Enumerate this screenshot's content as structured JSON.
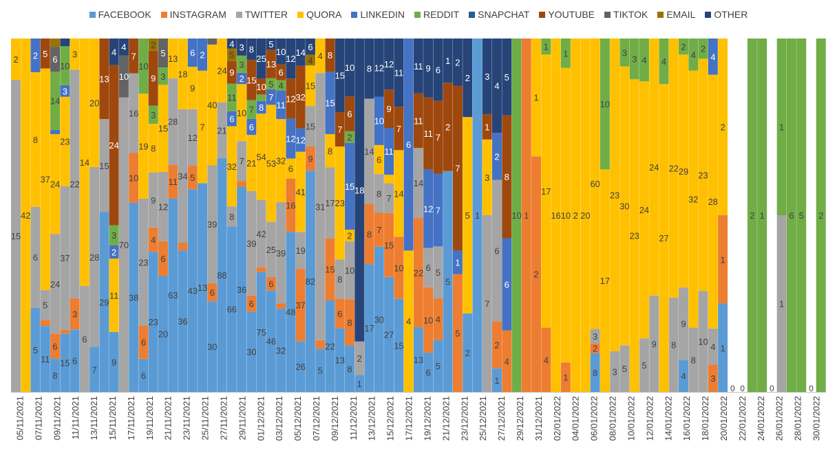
{
  "chart_data": {
    "type": "bar",
    "stacked": "percent",
    "title": "",
    "xlabel": "",
    "ylabel": "",
    "legend_position": "top",
    "grid": false,
    "series": [
      {
        "name": "FACEBOOK",
        "color": "#5B9BD5"
      },
      {
        "name": "INSTAGRAM",
        "color": "#ED7D31"
      },
      {
        "name": "TWITTER",
        "color": "#A5A5A5"
      },
      {
        "name": "QUORA",
        "color": "#FFC000"
      },
      {
        "name": "LINKEDIN",
        "color": "#4472C4"
      },
      {
        "name": "REDDIT",
        "color": "#70AD47"
      },
      {
        "name": "SNAPCHAT",
        "color": "#255E91"
      },
      {
        "name": "YOUTUBE",
        "color": "#9E480E"
      },
      {
        "name": "TIKTOK",
        "color": "#636363"
      },
      {
        "name": "EMAIL",
        "color": "#997300"
      },
      {
        "name": "OTHER",
        "color": "#264478"
      }
    ],
    "x_tick_labels": [
      "05/11/2021",
      "07/11/2021",
      "09/11/2021",
      "11/11/2021",
      "13/11/2021",
      "15/11/2021",
      "17/11/2021",
      "19/11/2021",
      "21/11/2021",
      "23/11/2021",
      "25/11/2021",
      "27/11/2021",
      "29/11/2021",
      "01/12/2021",
      "03/12/2021",
      "05/12/2021",
      "07/12/2021",
      "09/12/2021",
      "11/12/2021",
      "13/12/2021",
      "15/12/2021",
      "17/12/2021",
      "19/12/2021",
      "21/12/2021",
      "23/12/2021",
      "25/12/2021",
      "27/12/2021",
      "29/12/2021",
      "31/12/2021",
      "02/01/2022",
      "04/01/2022",
      "06/01/2022",
      "08/01/2022",
      "10/01/2022",
      "12/01/2022",
      "14/01/2022",
      "16/01/2022",
      "18/01/2022",
      "20/01/2022",
      "22/01/2022",
      "24/01/2022",
      "26/01/2022",
      "28/01/2022",
      "30/01/2022"
    ],
    "columns": [
      [
        0,
        0,
        15,
        2,
        0,
        0,
        0,
        0,
        0,
        0,
        0
      ],
      [
        0,
        0,
        0,
        42,
        0,
        0,
        0,
        0,
        0,
        0,
        0
      ],
      [
        5,
        0,
        6,
        8,
        2,
        0,
        0,
        0,
        0,
        0,
        0
      ],
      [
        11,
        1,
        5,
        37,
        0,
        0,
        0,
        5,
        0,
        0,
        0
      ],
      [
        8,
        6,
        24,
        24,
        1,
        14,
        0,
        0,
        6,
        2,
        0
      ],
      [
        15,
        1,
        37,
        23,
        3,
        10,
        0,
        0,
        0,
        0,
        2
      ],
      [
        6,
        3,
        22,
        3,
        0,
        0,
        0,
        0,
        0,
        0,
        0
      ],
      [
        0,
        0,
        6,
        14,
        0,
        0,
        0,
        0,
        0,
        0,
        0
      ],
      [
        7,
        0,
        28,
        20,
        0,
        0,
        0,
        0,
        0,
        0,
        0
      ],
      [
        29,
        0,
        15,
        0,
        0,
        0,
        0,
        13,
        0,
        0,
        0
      ],
      [
        9,
        0,
        0,
        11,
        2,
        3,
        0,
        24,
        0,
        0,
        4
      ],
      [
        0,
        0,
        70,
        0,
        0,
        0,
        0,
        0,
        10,
        0,
        4
      ],
      [
        38,
        10,
        16,
        0,
        0,
        0,
        0,
        7,
        0,
        0,
        0
      ],
      [
        6,
        6,
        23,
        19,
        0,
        10,
        0,
        0,
        0,
        0,
        0
      ],
      [
        23,
        4,
        9,
        8,
        0,
        3,
        0,
        9,
        0,
        2,
        0
      ],
      [
        20,
        6,
        12,
        15,
        0,
        3,
        0,
        0,
        5,
        0,
        0
      ],
      [
        63,
        11,
        28,
        13,
        0,
        0,
        0,
        0,
        0,
        0,
        0
      ],
      [
        36,
        2,
        34,
        18,
        0,
        0,
        0,
        0,
        0,
        0,
        0
      ],
      [
        43,
        5,
        12,
        9,
        6,
        0,
        0,
        0,
        0,
        0,
        0
      ],
      [
        13,
        0,
        0,
        7,
        2,
        0,
        0,
        0,
        0,
        0,
        0
      ],
      [
        30,
        6,
        39,
        40,
        0,
        0,
        0,
        0,
        2,
        0,
        0
      ],
      [
        88,
        0,
        21,
        24,
        0,
        0,
        0,
        0,
        0,
        0,
        0
      ],
      [
        66,
        0,
        8,
        32,
        6,
        11,
        0,
        9,
        0,
        5,
        4
      ],
      [
        36,
        1,
        7,
        10,
        2,
        3,
        0,
        0,
        0,
        0,
        3
      ],
      [
        30,
        6,
        39,
        21,
        6,
        7,
        0,
        15,
        0,
        0,
        8
      ],
      [
        75,
        3,
        42,
        54,
        8,
        4,
        0,
        10,
        0,
        0,
        25
      ],
      [
        46,
        6,
        25,
        53,
        7,
        5,
        0,
        13,
        0,
        0,
        5
      ],
      [
        32,
        2,
        39,
        32,
        11,
        4,
        0,
        6,
        0,
        0,
        10
      ],
      [
        48,
        16,
        0,
        6,
        12,
        0,
        0,
        12,
        0,
        0,
        12
      ],
      [
        26,
        37,
        19,
        41,
        12,
        0,
        0,
        32,
        0,
        0,
        14
      ],
      [
        82,
        9,
        15,
        15,
        0,
        0,
        0,
        0,
        0,
        4,
        6
      ],
      [
        5,
        1,
        31,
        4,
        0,
        0,
        0,
        0,
        0,
        0,
        0
      ],
      [
        22,
        15,
        17,
        8,
        15,
        0,
        0,
        8,
        0,
        0,
        0
      ],
      [
        13,
        6,
        8,
        23,
        0,
        0,
        0,
        7,
        0,
        0,
        15
      ],
      [
        8,
        8,
        10,
        2,
        15,
        2,
        0,
        6,
        0,
        0,
        10
      ],
      [
        1,
        0,
        2,
        0,
        0,
        0,
        0,
        0,
        0,
        0,
        18
      ],
      [
        17,
        8,
        14,
        0,
        0,
        0,
        0,
        0,
        0,
        0,
        8
      ],
      [
        30,
        7,
        8,
        6,
        10,
        0,
        0,
        0,
        0,
        0,
        12
      ],
      [
        27,
        15,
        7,
        2,
        11,
        0,
        0,
        9,
        0,
        0,
        12
      ],
      [
        15,
        10,
        0,
        14,
        0,
        0,
        0,
        7,
        0,
        0,
        11
      ],
      [
        0,
        0,
        0,
        4,
        6,
        0,
        0,
        0,
        0,
        0,
        0
      ],
      [
        13,
        22,
        14,
        0,
        0,
        0,
        0,
        11,
        0,
        0,
        11
      ],
      [
        6,
        10,
        6,
        0,
        12,
        0,
        0,
        11,
        0,
        0,
        9
      ],
      [
        5,
        4,
        5,
        0,
        7,
        0,
        0,
        7,
        0,
        0,
        6
      ],
      [
        5,
        0,
        0,
        0,
        0,
        0,
        0,
        2,
        0,
        0,
        1
      ],
      [
        0,
        5,
        0,
        0,
        1,
        0,
        0,
        7,
        0,
        0,
        2
      ],
      [
        2,
        0,
        0,
        5,
        0,
        0,
        0,
        0,
        0,
        0,
        2
      ],
      [
        1,
        0,
        0,
        0,
        0,
        0,
        0,
        0,
        0,
        0,
        0
      ],
      [
        0,
        0,
        7,
        3,
        0,
        0,
        0,
        1,
        0,
        0,
        3
      ],
      [
        1,
        2,
        6,
        0,
        2,
        0,
        0,
        0,
        0,
        0,
        4
      ],
      [
        0,
        4,
        0,
        0,
        6,
        0,
        0,
        8,
        0,
        0,
        5
      ],
      [
        0,
        0,
        0,
        0,
        0,
        10,
        0,
        0,
        0,
        0,
        0
      ],
      [
        0,
        1,
        0,
        0,
        0,
        0,
        0,
        0,
        0,
        0,
        0
      ],
      [
        0,
        2,
        0,
        1,
        0,
        0,
        0,
        0,
        0,
        0,
        0
      ],
      [
        0,
        4,
        0,
        17,
        0,
        1,
        0,
        0,
        0,
        0,
        0
      ],
      [
        0,
        0,
        0,
        16,
        0,
        0,
        0,
        0,
        0,
        0,
        0
      ],
      [
        0,
        1,
        0,
        10,
        0,
        1,
        0,
        0,
        0,
        0,
        0
      ],
      [
        0,
        0,
        0,
        2,
        0,
        0,
        0,
        0,
        0,
        0,
        0
      ],
      [
        0,
        0,
        0,
        20,
        0,
        0,
        0,
        0,
        0,
        0,
        0
      ],
      [
        8,
        2,
        3,
        60,
        0,
        0,
        0,
        0,
        0,
        0,
        0
      ],
      [
        0,
        0,
        0,
        17,
        0,
        10,
        0,
        0,
        0,
        0,
        0
      ],
      [
        0,
        0,
        3,
        23,
        0,
        0,
        0,
        0,
        0,
        0,
        0
      ],
      [
        0,
        0,
        5,
        30,
        0,
        3,
        0,
        0,
        0,
        0,
        0
      ],
      [
        0,
        0,
        0,
        23,
        0,
        3,
        0,
        0,
        0,
        0,
        0
      ],
      [
        0,
        0,
        5,
        24,
        0,
        4,
        0,
        0,
        0,
        0,
        0
      ],
      [
        0,
        0,
        9,
        24,
        0,
        0,
        0,
        0,
        0,
        0,
        0
      ],
      [
        0,
        0,
        0,
        27,
        0,
        4,
        0,
        0,
        0,
        0,
        0
      ],
      [
        0,
        0,
        8,
        22,
        0,
        0,
        0,
        0,
        0,
        0,
        0
      ],
      [
        4,
        0,
        9,
        29,
        0,
        2,
        0,
        0,
        0,
        0,
        0
      ],
      [
        0,
        0,
        8,
        32,
        0,
        4,
        0,
        0,
        0,
        0,
        0
      ],
      [
        0,
        0,
        10,
        23,
        0,
        2,
        0,
        0,
        0,
        0,
        0
      ],
      [
        0,
        3,
        4,
        28,
        4,
        0,
        0,
        0,
        0,
        0,
        0
      ],
      [
        1,
        1,
        0,
        2,
        0,
        0,
        0,
        0,
        0,
        0,
        0
      ],
      [
        0,
        0,
        0,
        0,
        0,
        0,
        0,
        0,
        0,
        0,
        0
      ],
      [
        0,
        0,
        0,
        0,
        0,
        0,
        0,
        0,
        0,
        0,
        0
      ],
      [
        0,
        0,
        0,
        0,
        0,
        2,
        0,
        0,
        0,
        0,
        0
      ],
      [
        0,
        0,
        0,
        0,
        0,
        1,
        0,
        0,
        0,
        0,
        0
      ],
      [
        0,
        0,
        0,
        0,
        0,
        0,
        0,
        0,
        0,
        0,
        0
      ],
      [
        0,
        0,
        1,
        0,
        0,
        1,
        0,
        0,
        0,
        0,
        0
      ],
      [
        0,
        0,
        0,
        0,
        0,
        6,
        0,
        0,
        0,
        0,
        0
      ],
      [
        0,
        0,
        0,
        0,
        0,
        5,
        0,
        0,
        0,
        0,
        0
      ],
      [
        0,
        0,
        0,
        0,
        0,
        0,
        0,
        0,
        0,
        0,
        0
      ],
      [
        0,
        0,
        0,
        0,
        0,
        2,
        0,
        0,
        0,
        0,
        0
      ]
    ]
  }
}
